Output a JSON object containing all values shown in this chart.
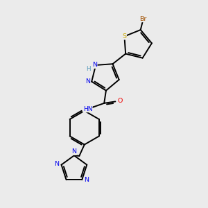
{
  "bg_color": "#ebebeb",
  "bond_color": "#000000",
  "atom_colors": {
    "Br": "#a05000",
    "S": "#ccaa00",
    "N": "#0000ee",
    "O": "#ee0000",
    "C": "#000000",
    "H": "#5599bb"
  },
  "lw": 1.4,
  "fs": 6.8,
  "fig_w": 3.0,
  "fig_h": 3.0,
  "dpi": 100,
  "xlim": [
    0,
    10
  ],
  "ylim": [
    0,
    10
  ]
}
